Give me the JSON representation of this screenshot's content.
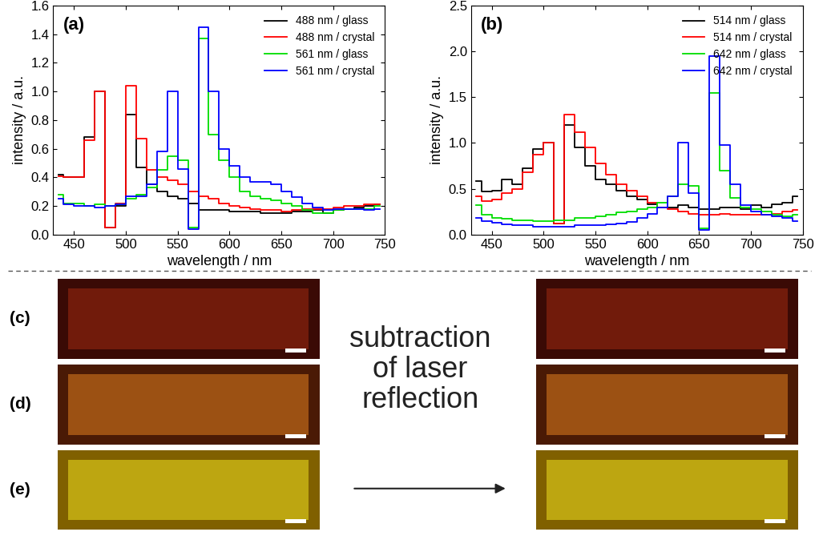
{
  "chart_data": [
    {
      "type": "line",
      "title": "(a)",
      "x_label": "wavelength / nm",
      "y_label": "intensity / a.u.",
      "x": [
        435,
        445,
        455,
        465,
        475,
        485,
        495,
        505,
        515,
        525,
        535,
        545,
        555,
        565,
        575,
        585,
        595,
        605,
        615,
        625,
        635,
        645,
        655,
        665,
        675,
        685,
        695,
        705,
        715,
        725,
        735,
        745
      ],
      "xlim": [
        430,
        750
      ],
      "xticks": [
        450,
        500,
        550,
        600,
        650,
        700,
        750
      ],
      "ylim": [
        0,
        1.6
      ],
      "yticks": [
        0.0,
        0.2,
        0.4,
        0.6,
        0.8,
        1.0,
        1.2,
        1.4,
        1.6
      ],
      "legend": "upper right",
      "line_style": "steps",
      "series": [
        {
          "name": "488 nm / glass",
          "color": "#000000",
          "values": [
            0.42,
            0.4,
            0.4,
            0.68,
            1.0,
            0.05,
            0.2,
            0.84,
            0.47,
            0.35,
            0.3,
            0.27,
            0.25,
            0.22,
            0.17,
            0.17,
            0.17,
            0.16,
            0.16,
            0.16,
            0.15,
            0.15,
            0.15,
            0.16,
            0.16,
            0.17,
            0.15,
            0.17,
            0.18,
            0.19,
            0.2,
            0.21
          ]
        },
        {
          "name": "488 nm / crystal",
          "color": "#ff0000",
          "values": [
            0.41,
            0.4,
            0.4,
            0.66,
            1.0,
            0.05,
            0.22,
            1.04,
            0.67,
            0.45,
            0.4,
            0.38,
            0.35,
            0.3,
            0.27,
            0.25,
            0.22,
            0.2,
            0.19,
            0.18,
            0.17,
            0.17,
            0.16,
            0.17,
            0.18,
            0.18,
            0.18,
            0.19,
            0.2,
            0.2,
            0.21,
            0.21
          ]
        },
        {
          "name": "561 nm / glass",
          "color": "#00dd00",
          "values": [
            0.28,
            0.22,
            0.22,
            0.2,
            0.21,
            0.2,
            0.21,
            0.25,
            0.28,
            0.33,
            0.45,
            0.55,
            0.52,
            0.05,
            1.37,
            0.7,
            0.52,
            0.4,
            0.3,
            0.27,
            0.25,
            0.24,
            0.22,
            0.2,
            0.17,
            0.15,
            0.15,
            0.17,
            0.18,
            0.18,
            0.18,
            0.2
          ]
        },
        {
          "name": "561 nm / crystal",
          "color": "#0000ff",
          "values": [
            0.25,
            0.21,
            0.2,
            0.2,
            0.19,
            0.2,
            0.21,
            0.27,
            0.27,
            0.35,
            0.58,
            1.0,
            0.46,
            0.04,
            1.45,
            1.0,
            0.6,
            0.48,
            0.4,
            0.37,
            0.37,
            0.35,
            0.3,
            0.26,
            0.22,
            0.19,
            0.17,
            0.18,
            0.18,
            0.18,
            0.17,
            0.18
          ]
        }
      ]
    },
    {
      "type": "line",
      "title": "(b)",
      "x_label": "wavelength / nm",
      "y_label": "intensity / a.u.",
      "x": [
        435,
        445,
        455,
        465,
        475,
        485,
        495,
        505,
        515,
        525,
        535,
        545,
        555,
        565,
        575,
        585,
        595,
        605,
        615,
        625,
        635,
        645,
        655,
        665,
        675,
        685,
        695,
        705,
        715,
        725,
        735,
        745
      ],
      "xlim": [
        430,
        750
      ],
      "xticks": [
        450,
        500,
        550,
        600,
        650,
        700,
        750
      ],
      "ylim": [
        0,
        2.5
      ],
      "yticks": [
        0.0,
        0.5,
        1.0,
        1.5,
        2.0,
        2.5
      ],
      "legend": "upper right",
      "line_style": "steps",
      "series": [
        {
          "name": "514 nm / glass",
          "color": "#000000",
          "values": [
            0.58,
            0.47,
            0.48,
            0.6,
            0.55,
            0.72,
            0.93,
            1.0,
            0.12,
            1.2,
            0.95,
            0.75,
            0.6,
            0.55,
            0.48,
            0.42,
            0.38,
            0.33,
            0.3,
            0.3,
            0.32,
            0.3,
            0.28,
            0.28,
            0.3,
            0.3,
            0.28,
            0.32,
            0.3,
            0.33,
            0.35,
            0.42
          ]
        },
        {
          "name": "514 nm / crystal",
          "color": "#ff0000",
          "values": [
            0.42,
            0.37,
            0.38,
            0.45,
            0.5,
            0.68,
            0.87,
            1.0,
            0.12,
            1.31,
            1.12,
            0.95,
            0.78,
            0.65,
            0.55,
            0.48,
            0.42,
            0.35,
            0.3,
            0.28,
            0.25,
            0.23,
            0.22,
            0.22,
            0.23,
            0.22,
            0.22,
            0.22,
            0.22,
            0.23,
            0.25,
            0.27
          ]
        },
        {
          "name": "642 nm / glass",
          "color": "#00dd00",
          "values": [
            0.32,
            0.22,
            0.18,
            0.17,
            0.16,
            0.16,
            0.15,
            0.15,
            0.16,
            0.16,
            0.18,
            0.18,
            0.2,
            0.22,
            0.24,
            0.25,
            0.28,
            0.3,
            0.35,
            0.42,
            0.55,
            0.53,
            0.07,
            1.55,
            0.7,
            0.4,
            0.3,
            0.28,
            0.25,
            0.22,
            0.2,
            0.22
          ]
        },
        {
          "name": "642 nm / crystal",
          "color": "#0000ff",
          "values": [
            0.18,
            0.15,
            0.13,
            0.11,
            0.1,
            0.1,
            0.09,
            0.09,
            0.09,
            0.09,
            0.1,
            0.1,
            0.1,
            0.11,
            0.12,
            0.14,
            0.18,
            0.23,
            0.3,
            0.42,
            1.0,
            0.45,
            0.05,
            1.95,
            0.98,
            0.55,
            0.32,
            0.25,
            0.22,
            0.2,
            0.18,
            0.15
          ]
        }
      ]
    }
  ],
  "images": {
    "labels": [
      "(c)",
      "(d)",
      "(e)"
    ],
    "caption_lines": [
      "subtraction",
      "of laser",
      "reflection"
    ]
  }
}
